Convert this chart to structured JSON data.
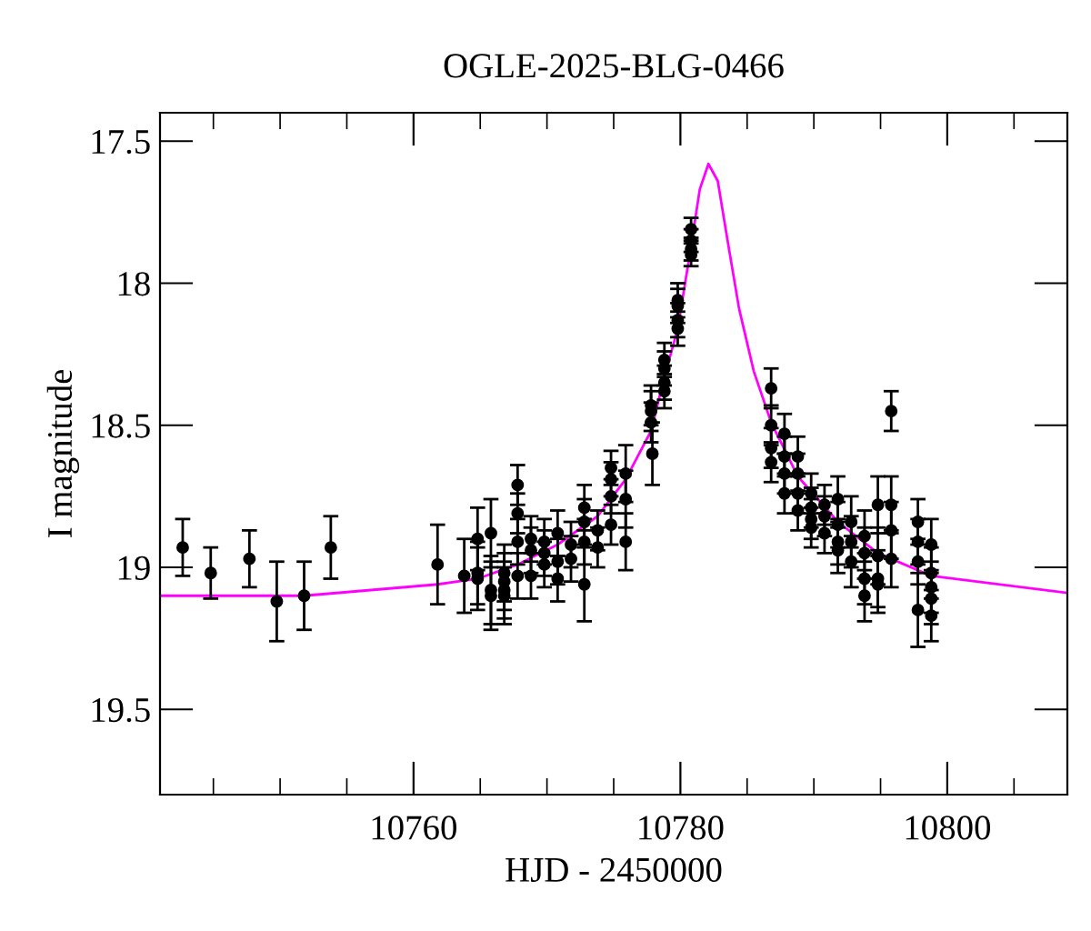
{
  "chart_data": {
    "type": "scatter",
    "title": "OGLE-2025-BLG-0466",
    "xlabel": "HJD - 2450000",
    "ylabel": "I magnitude",
    "xlim": [
      10741,
      10809
    ],
    "ylim": [
      19.8,
      17.4
    ],
    "xticks": [
      10760,
      10780,
      10800
    ],
    "yticks": [
      17.5,
      18,
      18.5,
      19,
      19.5
    ],
    "grid": false,
    "legend": false,
    "series": [
      {
        "color": "#000000",
        "marker": "circle",
        "x": [
          10742.7,
          10744.8,
          10747.7,
          10749.75,
          10751.8,
          10753.8,
          10761.8,
          10763.8,
          10764.8,
          10764.8,
          10764.8,
          10765.8,
          10765.8,
          10765.8,
          10766.8,
          10766.8,
          10766.8,
          10766.8,
          10767.8,
          10767.8,
          10767.8,
          10767.8,
          10768.8,
          10768.8,
          10768.8,
          10769.8,
          10769.8,
          10769.8,
          10770.8,
          10770.8,
          10770.8,
          10771.8,
          10771.8,
          10772.8,
          10772.8,
          10772.8,
          10772.8,
          10773.8,
          10773.8,
          10774.8,
          10774.8,
          10774.8,
          10774.8,
          10775.9,
          10775.9,
          10775.9,
          10777.8,
          10777.8,
          10777.8,
          10777.9,
          10778.8,
          10778.8,
          10778.8,
          10778.8,
          10779.8,
          10779.8,
          10779.8,
          10779.8,
          10780.8,
          10780.8,
          10780.8,
          10780.8,
          10786.8,
          10786.8,
          10786.8,
          10786.8,
          10787.8,
          10787.8,
          10787.8,
          10787.8,
          10788.8,
          10788.8,
          10788.8,
          10788.8,
          10789.8,
          10789.8,
          10789.8,
          10789.8,
          10790.8,
          10790.8,
          10790.8,
          10791.8,
          10791.8,
          10791.8,
          10791.8,
          10792.8,
          10792.8,
          10792.8,
          10793.8,
          10793.8,
          10793.8,
          10793.8,
          10794.8,
          10794.8,
          10794.8,
          10794.8,
          10795.8,
          10795.8,
          10795.8,
          10795.8,
          10797.8,
          10797.8,
          10797.8,
          10797.8,
          10798.8,
          10798.8,
          10798.8,
          10798.8,
          10798.8
        ],
        "values": [
          18.93,
          19.02,
          18.97,
          19.12,
          19.1,
          18.93,
          18.99,
          19.03,
          18.9,
          19.02,
          19.04,
          18.88,
          19.08,
          19.1,
          19.02,
          19.05,
          19.08,
          19.1,
          18.71,
          18.81,
          18.91,
          19.03,
          18.9,
          18.94,
          19.03,
          18.91,
          18.95,
          18.99,
          18.88,
          18.98,
          19.04,
          18.92,
          18.97,
          18.79,
          18.84,
          18.91,
          19.06,
          18.87,
          18.93,
          18.65,
          18.69,
          18.75,
          18.85,
          18.67,
          18.76,
          18.91,
          18.43,
          18.45,
          18.49,
          18.6,
          18.27,
          18.3,
          18.35,
          18.38,
          18.06,
          18.08,
          18.13,
          18.16,
          17.81,
          17.85,
          17.88,
          17.9,
          18.37,
          18.5,
          18.58,
          18.63,
          18.53,
          18.61,
          18.67,
          18.74,
          18.61,
          18.67,
          18.74,
          18.8,
          18.74,
          18.79,
          18.83,
          18.86,
          18.78,
          18.82,
          18.88,
          18.76,
          18.85,
          18.91,
          18.94,
          18.84,
          18.91,
          18.98,
          18.89,
          18.95,
          19.04,
          19.1,
          18.78,
          18.96,
          19.04,
          19.06,
          18.45,
          18.78,
          18.87,
          18.97,
          18.84,
          18.91,
          18.98,
          19.15,
          18.92,
          19.02,
          19.07,
          19.11,
          19.17
        ],
        "errors": [
          0.1,
          0.09,
          0.1,
          0.14,
          0.12,
          0.11,
          0.14,
          0.13,
          0.11,
          0.11,
          0.11,
          0.12,
          0.12,
          0.12,
          0.1,
          0.1,
          0.1,
          0.1,
          0.07,
          0.07,
          0.08,
          0.08,
          0.08,
          0.08,
          0.08,
          0.08,
          0.08,
          0.08,
          0.08,
          0.08,
          0.08,
          0.08,
          0.08,
          0.08,
          0.08,
          0.08,
          0.13,
          0.07,
          0.07,
          0.06,
          0.06,
          0.06,
          0.07,
          0.1,
          0.1,
          0.1,
          0.07,
          0.07,
          0.07,
          0.11,
          0.06,
          0.06,
          0.06,
          0.06,
          0.06,
          0.06,
          0.06,
          0.06,
          0.04,
          0.04,
          0.04,
          0.04,
          0.07,
          0.07,
          0.07,
          0.07,
          0.07,
          0.07,
          0.07,
          0.07,
          0.07,
          0.07,
          0.07,
          0.07,
          0.07,
          0.07,
          0.07,
          0.07,
          0.07,
          0.07,
          0.07,
          0.08,
          0.08,
          0.08,
          0.08,
          0.09,
          0.09,
          0.09,
          0.09,
          0.09,
          0.09,
          0.09,
          0.1,
          0.1,
          0.1,
          0.1,
          0.07,
          0.1,
          0.1,
          0.1,
          0.08,
          0.08,
          0.08,
          0.13,
          0.09,
          0.09,
          0.09,
          0.09,
          0.09
        ]
      },
      {
        "type": "line",
        "color": "#ff00ff",
        "line_style": "solid",
        "x": [
          10741,
          10751.8,
          10761.8,
          10764.8,
          10767.8,
          10770.8,
          10773.8,
          10775.9,
          10777.8,
          10778.8,
          10779.8,
          10780.8,
          10781.45,
          10782.1,
          10782.8,
          10783.5,
          10784.4,
          10785.5,
          10786.8,
          10788.8,
          10791.8,
          10794.8,
          10798.8,
          10809
        ],
        "values": [
          19.1,
          19.1,
          19.06,
          19.04,
          18.99,
          18.92,
          18.82,
          18.69,
          18.52,
          18.33,
          18.16,
          17.87,
          17.67,
          17.58,
          17.64,
          17.84,
          18.09,
          18.31,
          18.49,
          18.68,
          18.84,
          18.95,
          19.03,
          19.09
        ]
      }
    ]
  }
}
